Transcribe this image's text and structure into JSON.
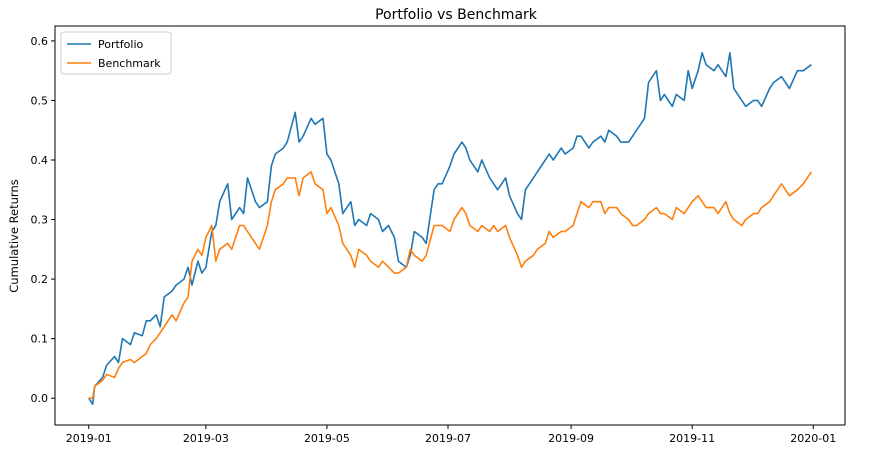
{
  "chart_data": {
    "type": "line",
    "title": "Portfolio vs Benchmark",
    "xlabel": "",
    "ylabel": "Cumulative Returns",
    "x_ticks": [
      "2019-01",
      "2019-03",
      "2019-05",
      "2019-07",
      "2019-09",
      "2019-11",
      "2020-01"
    ],
    "x_tick_dates": [
      "2019-01-01",
      "2019-03-01",
      "2019-05-01",
      "2019-07-01",
      "2019-09-01",
      "2019-11-01",
      "2020-01-01"
    ],
    "xlim": [
      "2018-12-15",
      "2020-01-17"
    ],
    "y_ticks": [
      0.0,
      0.1,
      0.2,
      0.3,
      0.4,
      0.5,
      0.6
    ],
    "y_tick_labels": [
      "0.0",
      "0.1",
      "0.2",
      "0.3",
      "0.4",
      "0.5",
      "0.6"
    ],
    "ylim": [
      -0.045,
      0.625
    ],
    "grid": false,
    "legend_position": "top-left",
    "series": [
      {
        "name": "Portfolio",
        "color": "#1f77b4",
        "x": [
          "2019-01-01",
          "2019-01-03",
          "2019-01-04",
          "2019-01-08",
          "2019-01-10",
          "2019-01-14",
          "2019-01-16",
          "2019-01-18",
          "2019-01-22",
          "2019-01-24",
          "2019-01-28",
          "2019-01-30",
          "2019-02-01",
          "2019-02-04",
          "2019-02-06",
          "2019-02-08",
          "2019-02-12",
          "2019-02-14",
          "2019-02-18",
          "2019-02-20",
          "2019-02-22",
          "2019-02-25",
          "2019-02-27",
          "2019-03-01",
          "2019-03-04",
          "2019-03-06",
          "2019-03-08",
          "2019-03-12",
          "2019-03-14",
          "2019-03-18",
          "2019-03-20",
          "2019-03-22",
          "2019-03-26",
          "2019-03-28",
          "2019-04-01",
          "2019-04-03",
          "2019-04-05",
          "2019-04-09",
          "2019-04-11",
          "2019-04-15",
          "2019-04-17",
          "2019-04-19",
          "2019-04-23",
          "2019-04-25",
          "2019-04-29",
          "2019-05-01",
          "2019-05-03",
          "2019-05-07",
          "2019-05-09",
          "2019-05-13",
          "2019-05-15",
          "2019-05-17",
          "2019-05-21",
          "2019-05-23",
          "2019-05-27",
          "2019-05-29",
          "2019-06-01",
          "2019-06-04",
          "2019-06-06",
          "2019-06-10",
          "2019-06-12",
          "2019-06-14",
          "2019-06-18",
          "2019-06-20",
          "2019-06-24",
          "2019-06-26",
          "2019-06-28",
          "2019-07-02",
          "2019-07-04",
          "2019-07-08",
          "2019-07-10",
          "2019-07-12",
          "2019-07-16",
          "2019-07-18",
          "2019-07-22",
          "2019-07-24",
          "2019-07-26",
          "2019-07-30",
          "2019-08-01",
          "2019-08-05",
          "2019-08-07",
          "2019-08-09",
          "2019-08-13",
          "2019-08-15",
          "2019-08-19",
          "2019-08-21",
          "2019-08-23",
          "2019-08-27",
          "2019-08-29",
          "2019-09-02",
          "2019-09-04",
          "2019-09-06",
          "2019-09-10",
          "2019-09-12",
          "2019-09-16",
          "2019-09-18",
          "2019-09-20",
          "2019-09-24",
          "2019-09-26",
          "2019-09-30",
          "2019-10-02",
          "2019-10-04",
          "2019-10-08",
          "2019-10-10",
          "2019-10-14",
          "2019-10-16",
          "2019-10-18",
          "2019-10-22",
          "2019-10-24",
          "2019-10-28",
          "2019-10-30",
          "2019-11-01",
          "2019-11-04",
          "2019-11-06",
          "2019-11-08",
          "2019-11-12",
          "2019-11-14",
          "2019-11-18",
          "2019-11-20",
          "2019-11-22",
          "2019-11-26",
          "2019-11-28",
          "2019-12-02",
          "2019-12-04",
          "2019-12-06",
          "2019-12-10",
          "2019-12-12",
          "2019-12-16",
          "2019-12-18",
          "2019-12-20",
          "2019-12-24",
          "2019-12-27",
          "2019-12-31"
        ],
        "values": [
          0.0,
          -0.01,
          0.02,
          0.035,
          0.055,
          0.07,
          0.06,
          0.1,
          0.09,
          0.11,
          0.105,
          0.13,
          0.13,
          0.14,
          0.12,
          0.17,
          0.18,
          0.19,
          0.2,
          0.22,
          0.19,
          0.23,
          0.21,
          0.22,
          0.28,
          0.29,
          0.33,
          0.36,
          0.3,
          0.32,
          0.31,
          0.37,
          0.33,
          0.32,
          0.33,
          0.39,
          0.41,
          0.42,
          0.43,
          0.48,
          0.43,
          0.44,
          0.47,
          0.46,
          0.47,
          0.41,
          0.4,
          0.36,
          0.31,
          0.33,
          0.29,
          0.3,
          0.29,
          0.31,
          0.3,
          0.28,
          0.29,
          0.27,
          0.23,
          0.22,
          0.24,
          0.28,
          0.27,
          0.26,
          0.35,
          0.36,
          0.36,
          0.39,
          0.41,
          0.43,
          0.42,
          0.4,
          0.38,
          0.4,
          0.37,
          0.36,
          0.35,
          0.37,
          0.34,
          0.31,
          0.3,
          0.35,
          0.37,
          0.38,
          0.4,
          0.41,
          0.4,
          0.42,
          0.41,
          0.42,
          0.44,
          0.44,
          0.42,
          0.43,
          0.44,
          0.43,
          0.45,
          0.44,
          0.43,
          0.43,
          0.44,
          0.45,
          0.47,
          0.53,
          0.55,
          0.5,
          0.51,
          0.49,
          0.51,
          0.5,
          0.55,
          0.52,
          0.55,
          0.58,
          0.56,
          0.55,
          0.56,
          0.54,
          0.58,
          0.52,
          0.5,
          0.49,
          0.5,
          0.5,
          0.49,
          0.52,
          0.53,
          0.54,
          0.53,
          0.52,
          0.55,
          0.55,
          0.56
        ]
      },
      {
        "name": "Benchmark",
        "color": "#ff7f0e",
        "x": [
          "2019-01-01",
          "2019-01-03",
          "2019-01-04",
          "2019-01-08",
          "2019-01-10",
          "2019-01-14",
          "2019-01-16",
          "2019-01-18",
          "2019-01-22",
          "2019-01-24",
          "2019-01-28",
          "2019-01-30",
          "2019-02-01",
          "2019-02-04",
          "2019-02-06",
          "2019-02-08",
          "2019-02-12",
          "2019-02-14",
          "2019-02-18",
          "2019-02-20",
          "2019-02-22",
          "2019-02-25",
          "2019-02-27",
          "2019-03-01",
          "2019-03-04",
          "2019-03-06",
          "2019-03-08",
          "2019-03-12",
          "2019-03-14",
          "2019-03-18",
          "2019-03-20",
          "2019-03-22",
          "2019-03-26",
          "2019-03-28",
          "2019-04-01",
          "2019-04-03",
          "2019-04-05",
          "2019-04-09",
          "2019-04-11",
          "2019-04-15",
          "2019-04-17",
          "2019-04-19",
          "2019-04-23",
          "2019-04-25",
          "2019-04-29",
          "2019-05-01",
          "2019-05-03",
          "2019-05-07",
          "2019-05-09",
          "2019-05-13",
          "2019-05-15",
          "2019-05-17",
          "2019-05-21",
          "2019-05-23",
          "2019-05-27",
          "2019-05-29",
          "2019-06-01",
          "2019-06-04",
          "2019-06-06",
          "2019-06-10",
          "2019-06-12",
          "2019-06-14",
          "2019-06-18",
          "2019-06-20",
          "2019-06-24",
          "2019-06-26",
          "2019-06-28",
          "2019-07-02",
          "2019-07-04",
          "2019-07-08",
          "2019-07-10",
          "2019-07-12",
          "2019-07-16",
          "2019-07-18",
          "2019-07-22",
          "2019-07-24",
          "2019-07-26",
          "2019-07-30",
          "2019-08-01",
          "2019-08-05",
          "2019-08-07",
          "2019-08-09",
          "2019-08-13",
          "2019-08-15",
          "2019-08-19",
          "2019-08-21",
          "2019-08-23",
          "2019-08-27",
          "2019-08-29",
          "2019-09-02",
          "2019-09-04",
          "2019-09-06",
          "2019-09-10",
          "2019-09-12",
          "2019-09-16",
          "2019-09-18",
          "2019-09-20",
          "2019-09-24",
          "2019-09-26",
          "2019-09-30",
          "2019-10-02",
          "2019-10-04",
          "2019-10-08",
          "2019-10-10",
          "2019-10-14",
          "2019-10-16",
          "2019-10-18",
          "2019-10-22",
          "2019-10-24",
          "2019-10-28",
          "2019-10-30",
          "2019-11-01",
          "2019-11-04",
          "2019-11-06",
          "2019-11-08",
          "2019-11-12",
          "2019-11-14",
          "2019-11-18",
          "2019-11-20",
          "2019-11-22",
          "2019-11-26",
          "2019-11-28",
          "2019-12-02",
          "2019-12-04",
          "2019-12-06",
          "2019-12-10",
          "2019-12-12",
          "2019-12-16",
          "2019-12-18",
          "2019-12-20",
          "2019-12-24",
          "2019-12-27",
          "2019-12-31"
        ],
        "values": [
          0.0,
          0.0,
          0.02,
          0.03,
          0.04,
          0.035,
          0.05,
          0.06,
          0.065,
          0.06,
          0.07,
          0.075,
          0.09,
          0.1,
          0.11,
          0.12,
          0.14,
          0.13,
          0.16,
          0.17,
          0.23,
          0.25,
          0.24,
          0.27,
          0.29,
          0.23,
          0.25,
          0.26,
          0.25,
          0.29,
          0.29,
          0.28,
          0.26,
          0.25,
          0.29,
          0.33,
          0.35,
          0.36,
          0.37,
          0.37,
          0.34,
          0.37,
          0.38,
          0.36,
          0.35,
          0.31,
          0.32,
          0.29,
          0.26,
          0.24,
          0.22,
          0.25,
          0.24,
          0.23,
          0.22,
          0.23,
          0.22,
          0.21,
          0.21,
          0.22,
          0.25,
          0.24,
          0.23,
          0.24,
          0.29,
          0.29,
          0.29,
          0.28,
          0.3,
          0.32,
          0.31,
          0.29,
          0.28,
          0.29,
          0.28,
          0.29,
          0.28,
          0.29,
          0.27,
          0.24,
          0.22,
          0.23,
          0.24,
          0.25,
          0.26,
          0.28,
          0.27,
          0.28,
          0.28,
          0.29,
          0.31,
          0.33,
          0.32,
          0.33,
          0.33,
          0.31,
          0.32,
          0.32,
          0.31,
          0.3,
          0.29,
          0.29,
          0.3,
          0.31,
          0.32,
          0.31,
          0.31,
          0.3,
          0.32,
          0.31,
          0.32,
          0.33,
          0.34,
          0.33,
          0.32,
          0.32,
          0.31,
          0.33,
          0.31,
          0.3,
          0.29,
          0.3,
          0.31,
          0.31,
          0.32,
          0.33,
          0.34,
          0.36,
          0.35,
          0.34,
          0.35,
          0.36,
          0.38
        ]
      }
    ]
  }
}
